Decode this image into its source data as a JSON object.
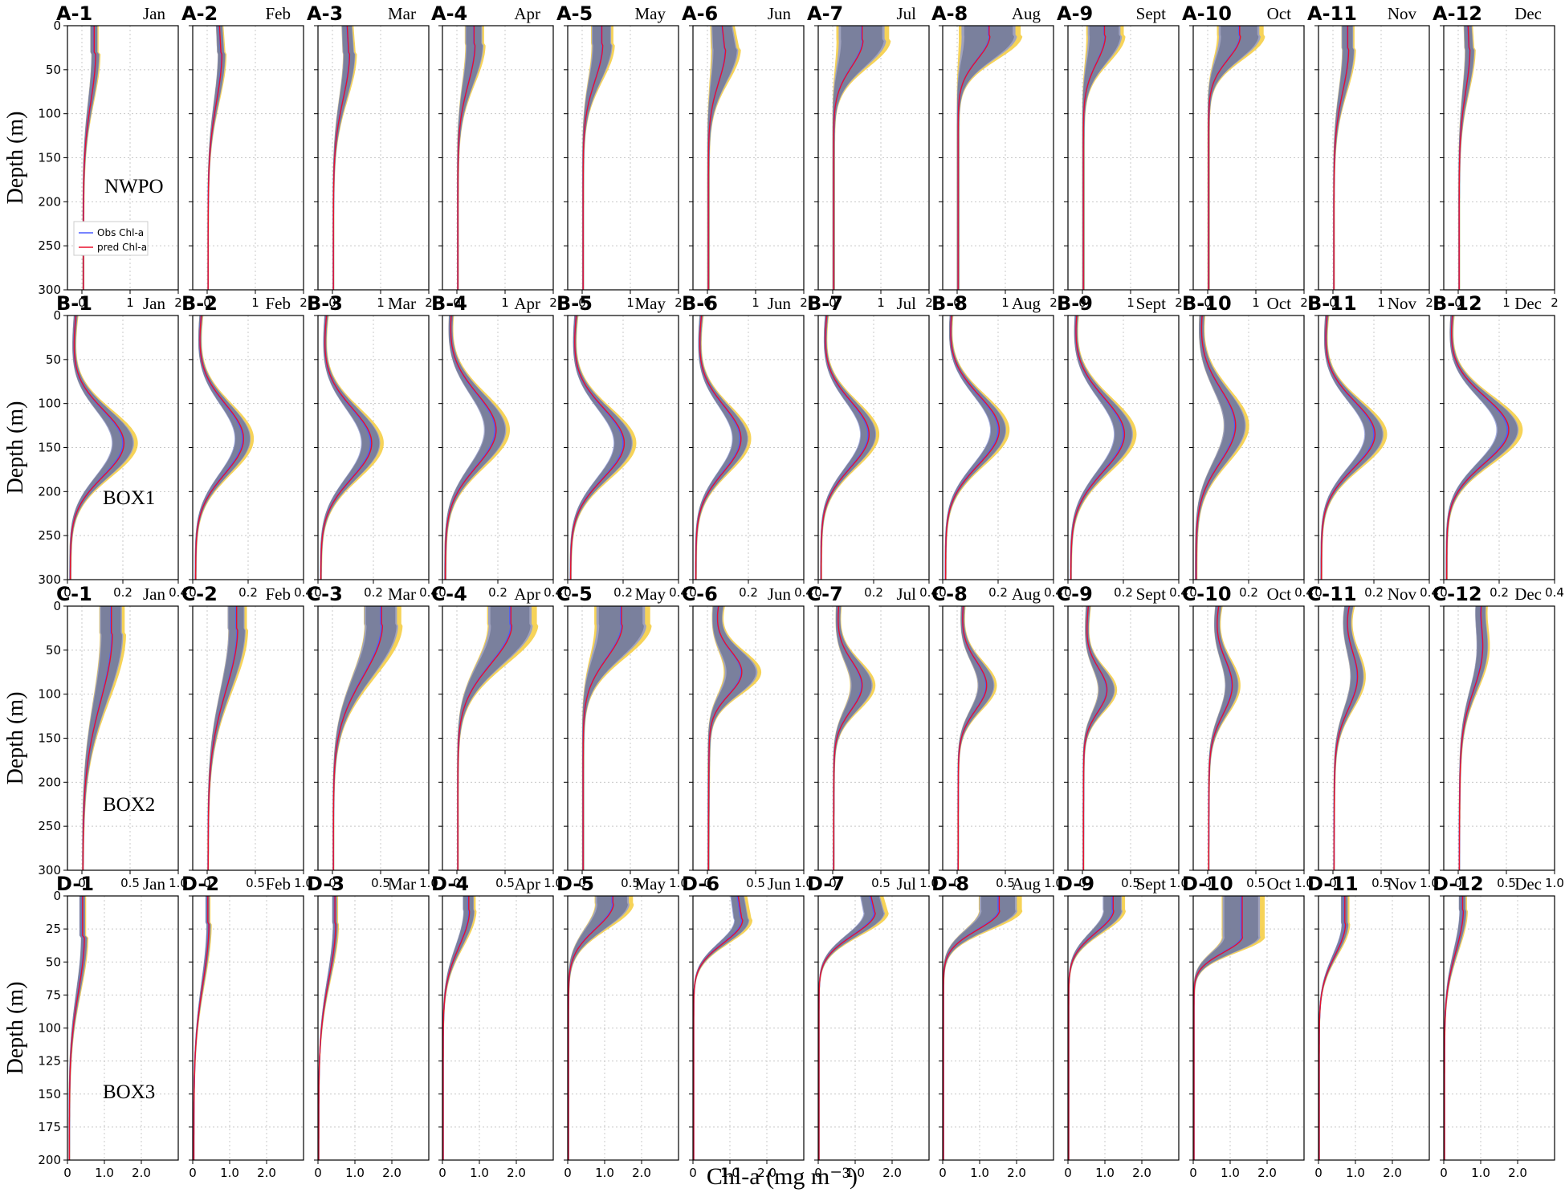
{
  "xlabel": "Chl-a (mg m⁻³)",
  "ylabel": "Depth (m)",
  "months": [
    "Jan",
    "Feb",
    "Mar",
    "Apr",
    "May",
    "Jun",
    "Jul",
    "Aug",
    "Sept",
    "Oct",
    "Nov",
    "Dec"
  ],
  "legend": {
    "obs": "Obs Chl-a",
    "pred": "pred Chl-a"
  },
  "colors": {
    "obs": "#4a5cff",
    "pred": "#e8112d",
    "obs_band": "#8a96d8",
    "pred_band": "#f5cb3b",
    "overlap_band": "#6e7491"
  },
  "chart_data": [
    {
      "row": "A",
      "region": "NWPO",
      "type": "line",
      "xlim": [
        -0.3,
        2
      ],
      "ylim": [
        300,
        0
      ],
      "xticks": [
        0,
        1,
        2
      ],
      "xtick_labels": [
        "0",
        "1",
        "2"
      ],
      "yticks": [
        0,
        50,
        100,
        150,
        200,
        250,
        300
      ],
      "ytick_labels": [
        "0",
        "50",
        "100",
        "150",
        "200",
        "250",
        "300"
      ],
      "panels": [
        {
          "id": "A-1",
          "month": "Jan",
          "surface": 0.25,
          "peak": 0.25,
          "peak_depth": 30,
          "spread": 0.12,
          "deep": 0.03,
          "depth_scale": 80
        },
        {
          "id": "A-2",
          "month": "Feb",
          "surface": 0.25,
          "peak": 0.28,
          "peak_depth": 30,
          "spread": 0.12,
          "deep": 0.02,
          "depth_scale": 80
        },
        {
          "id": "A-3",
          "month": "Mar",
          "surface": 0.3,
          "peak": 0.33,
          "peak_depth": 30,
          "spread": 0.2,
          "deep": 0.02,
          "depth_scale": 75
        },
        {
          "id": "A-4",
          "month": "Apr",
          "surface": 0.35,
          "peak": 0.35,
          "peak_depth": 20,
          "spread": 0.3,
          "deep": 0.02,
          "depth_scale": 65
        },
        {
          "id": "A-5",
          "month": "May",
          "surface": 0.4,
          "peak": 0.4,
          "peak_depth": 20,
          "spread": 0.35,
          "deep": 0.02,
          "depth_scale": 60
        },
        {
          "id": "A-6",
          "month": "Jun",
          "surface": 0.3,
          "peak": 0.35,
          "peak_depth": 25,
          "spread": 0.45,
          "deep": 0.02,
          "depth_scale": 55
        },
        {
          "id": "A-7",
          "month": "Jul",
          "surface": 0.6,
          "peak": 0.6,
          "peak_depth": 15,
          "spread": 0.85,
          "deep": 0.02,
          "depth_scale": 45
        },
        {
          "id": "A-8",
          "month": "Aug",
          "surface": 0.65,
          "peak": 0.65,
          "peak_depth": 10,
          "spread": 1.0,
          "deep": 0.02,
          "depth_scale": 40
        },
        {
          "id": "A-9",
          "month": "Sept",
          "surface": 0.45,
          "peak": 0.45,
          "peak_depth": 10,
          "spread": 0.6,
          "deep": 0.02,
          "depth_scale": 45
        },
        {
          "id": "A-10",
          "month": "Oct",
          "surface": 0.65,
          "peak": 0.65,
          "peak_depth": 10,
          "spread": 0.75,
          "deep": 0.02,
          "depth_scale": 40
        },
        {
          "id": "A-11",
          "month": "Nov",
          "surface": 0.3,
          "peak": 0.3,
          "peak_depth": 25,
          "spread": 0.2,
          "deep": 0.02,
          "depth_scale": 70
        },
        {
          "id": "A-12",
          "month": "Dec",
          "surface": 0.2,
          "peak": 0.22,
          "peak_depth": 25,
          "spread": 0.15,
          "deep": 0.02,
          "depth_scale": 70
        }
      ]
    },
    {
      "row": "B",
      "region": "BOX1",
      "type": "line",
      "xlim": [
        0,
        0.4
      ],
      "ylim": [
        300,
        0
      ],
      "xticks": [
        0,
        0.2,
        0.4
      ],
      "xtick_labels": [
        "0",
        "0.2",
        "0.4"
      ],
      "yticks": [
        0,
        50,
        100,
        150,
        200,
        250,
        300
      ],
      "ytick_labels": [
        "0",
        "50",
        "100",
        "150",
        "200",
        "250",
        "300"
      ],
      "panels": [
        {
          "id": "B-1",
          "month": "Jan",
          "surface": 0.02,
          "peak": 0.2,
          "peak_depth": 145,
          "spread": 0.07,
          "deep": 0.01,
          "width": 38
        },
        {
          "id": "B-2",
          "month": "Feb",
          "surface": 0.02,
          "peak": 0.18,
          "peak_depth": 140,
          "spread": 0.05,
          "deep": 0.01,
          "width": 40
        },
        {
          "id": "B-3",
          "month": "Mar",
          "surface": 0.02,
          "peak": 0.19,
          "peak_depth": 145,
          "spread": 0.06,
          "deep": 0.01,
          "width": 40
        },
        {
          "id": "B-4",
          "month": "Apr",
          "surface": 0.02,
          "peak": 0.19,
          "peak_depth": 130,
          "spread": 0.07,
          "deep": 0.01,
          "width": 42
        },
        {
          "id": "B-5",
          "month": "May",
          "surface": 0.02,
          "peak": 0.2,
          "peak_depth": 145,
          "spread": 0.06,
          "deep": 0.01,
          "width": 40
        },
        {
          "id": "B-6",
          "month": "Jun",
          "surface": 0.02,
          "peak": 0.17,
          "peak_depth": 140,
          "spread": 0.05,
          "deep": 0.01,
          "width": 38
        },
        {
          "id": "B-7",
          "month": "Jul",
          "surface": 0.02,
          "peak": 0.18,
          "peak_depth": 135,
          "spread": 0.05,
          "deep": 0.01,
          "width": 38
        },
        {
          "id": "B-8",
          "month": "Aug",
          "surface": 0.02,
          "peak": 0.2,
          "peak_depth": 130,
          "spread": 0.05,
          "deep": 0.01,
          "width": 40
        },
        {
          "id": "B-9",
          "month": "Sept",
          "surface": 0.02,
          "peak": 0.2,
          "peak_depth": 135,
          "spread": 0.06,
          "deep": 0.01,
          "width": 42
        },
        {
          "id": "B-10",
          "month": "Oct",
          "surface": 0.02,
          "peak": 0.15,
          "peak_depth": 125,
          "spread": 0.07,
          "deep": 0.01,
          "width": 42
        },
        {
          "id": "B-11",
          "month": "Nov",
          "surface": 0.02,
          "peak": 0.2,
          "peak_depth": 135,
          "spread": 0.06,
          "deep": 0.01,
          "width": 38
        },
        {
          "id": "B-12",
          "month": "Dec",
          "surface": 0.02,
          "peak": 0.23,
          "peak_depth": 130,
          "spread": 0.07,
          "deep": 0.01,
          "width": 38
        }
      ]
    },
    {
      "row": "C",
      "region": "BOX2",
      "type": "line",
      "xlim": [
        -0.15,
        1.0
      ],
      "ylim": [
        300,
        0
      ],
      "xticks": [
        0,
        0.5,
        1.0
      ],
      "xtick_labels": [
        "0",
        "0.5",
        "1.0"
      ],
      "yticks": [
        0,
        50,
        100,
        150,
        200,
        250,
        300
      ],
      "ytick_labels": [
        "0",
        "50",
        "100",
        "150",
        "200",
        "250",
        "300"
      ],
      "panels": [
        {
          "id": "C-1",
          "month": "Jan",
          "surface": 0.3,
          "peak": 0.3,
          "peak_depth": 30,
          "spread": 0.2,
          "deep": 0.01,
          "depth_scale": 110
        },
        {
          "id": "C-2",
          "month": "Feb",
          "surface": 0.3,
          "peak": 0.3,
          "peak_depth": 25,
          "spread": 0.15,
          "deep": 0.01,
          "depth_scale": 100
        },
        {
          "id": "C-3",
          "month": "Mar",
          "surface": 0.5,
          "peak": 0.5,
          "peak_depth": 20,
          "spread": 0.3,
          "deep": 0.01,
          "depth_scale": 85
        },
        {
          "id": "C-4",
          "month": "Apr",
          "surface": 0.55,
          "peak": 0.55,
          "peak_depth": 20,
          "spread": 0.4,
          "deep": 0.01,
          "depth_scale": 65
        },
        {
          "id": "C-5",
          "month": "May",
          "surface": 0.4,
          "peak": 0.4,
          "peak_depth": 20,
          "spread": 0.45,
          "deep": 0.01,
          "depth_scale": 55
        },
        {
          "id": "C-6",
          "month": "Jun",
          "surface": 0.1,
          "peak": 0.35,
          "peak_depth": 75,
          "spread": 0.3,
          "deep": 0.01,
          "width": 25
        },
        {
          "id": "C-7",
          "month": "Jul",
          "surface": 0.05,
          "peak": 0.3,
          "peak_depth": 90,
          "spread": 0.2,
          "deep": 0.01,
          "width": 28
        },
        {
          "id": "C-8",
          "month": "Aug",
          "surface": 0.05,
          "peak": 0.3,
          "peak_depth": 90,
          "spread": 0.15,
          "deep": 0.01,
          "width": 28
        },
        {
          "id": "C-9",
          "month": "Sept",
          "surface": 0.05,
          "peak": 0.25,
          "peak_depth": 95,
          "spread": 0.15,
          "deep": 0.01,
          "width": 25
        },
        {
          "id": "C-10",
          "month": "Oct",
          "surface": 0.1,
          "peak": 0.25,
          "peak_depth": 90,
          "spread": 0.12,
          "deep": 0.01,
          "width": 32
        },
        {
          "id": "C-11",
          "month": "Nov",
          "surface": 0.15,
          "peak": 0.25,
          "peak_depth": 80,
          "spread": 0.12,
          "deep": 0.01,
          "width": 35
        },
        {
          "id": "C-12",
          "month": "Dec",
          "surface": 0.2,
          "peak": 0.25,
          "peak_depth": 45,
          "spread": 0.1,
          "deep": 0.01,
          "width": 45
        }
      ]
    },
    {
      "row": "D",
      "region": "BOX3",
      "type": "line",
      "xlim": [
        0,
        3.0
      ],
      "ylim": [
        200,
        0
      ],
      "xticks": [
        0,
        1.0,
        2.0
      ],
      "xtick_labels": [
        "0",
        "1.0",
        "2.0"
      ],
      "yticks": [
        0,
        25,
        50,
        75,
        100,
        125,
        150,
        175,
        200
      ],
      "ytick_labels": [
        "0",
        "25",
        "50",
        "75",
        "100",
        "125",
        "150",
        "175",
        "200"
      ],
      "panels": [
        {
          "id": "D-1",
          "month": "Jan",
          "surface": 0.4,
          "peak": 0.4,
          "peak_depth": 30,
          "spread": 0.12,
          "deep": 0.05,
          "depth_scale": 60
        },
        {
          "id": "D-2",
          "month": "Feb",
          "surface": 0.4,
          "peak": 0.4,
          "peak_depth": 20,
          "spread": 0.08,
          "deep": 0.03,
          "depth_scale": 65
        },
        {
          "id": "D-3",
          "month": "Mar",
          "surface": 0.45,
          "peak": 0.45,
          "peak_depth": 20,
          "spread": 0.1,
          "deep": 0.02,
          "depth_scale": 60
        },
        {
          "id": "D-4",
          "month": "Apr",
          "surface": 0.7,
          "peak": 0.7,
          "peak_depth": 10,
          "spread": 0.25,
          "deep": 0.02,
          "depth_scale": 40
        },
        {
          "id": "D-5",
          "month": "May",
          "surface": 1.2,
          "peak": 1.2,
          "peak_depth": 5,
          "spread": 0.8,
          "deep": 0.02,
          "depth_scale": 28
        },
        {
          "id": "D-6",
          "month": "Jun",
          "surface": 1.2,
          "peak": 1.3,
          "peak_depth": 18,
          "spread": 0.35,
          "deep": 0.02,
          "depth_scale": 25
        },
        {
          "id": "D-7",
          "month": "Jul",
          "surface": 1.4,
          "peak": 1.5,
          "peak_depth": 12,
          "spread": 0.5,
          "deep": 0.02,
          "depth_scale": 25
        },
        {
          "id": "D-8",
          "month": "Aug",
          "surface": 1.5,
          "peak": 1.5,
          "peak_depth": 10,
          "spread": 0.9,
          "deep": 0.02,
          "depth_scale": 22
        },
        {
          "id": "D-9",
          "month": "Sept",
          "surface": 1.2,
          "peak": 1.2,
          "peak_depth": 10,
          "spread": 0.45,
          "deep": 0.02,
          "depth_scale": 25
        },
        {
          "id": "D-10",
          "month": "Oct",
          "surface": 1.3,
          "peak": 1.3,
          "peak_depth": 30,
          "spread": 0.9,
          "deep": 0.02,
          "depth_scale": 18
        },
        {
          "id": "D-11",
          "month": "Nov",
          "surface": 0.7,
          "peak": 0.7,
          "peak_depth": 20,
          "spread": 0.15,
          "deep": 0.02,
          "depth_scale": 35
        },
        {
          "id": "D-12",
          "month": "Dec",
          "surface": 0.5,
          "peak": 0.5,
          "peak_depth": 10,
          "spread": 0.15,
          "deep": 0.02,
          "depth_scale": 45
        }
      ]
    }
  ]
}
